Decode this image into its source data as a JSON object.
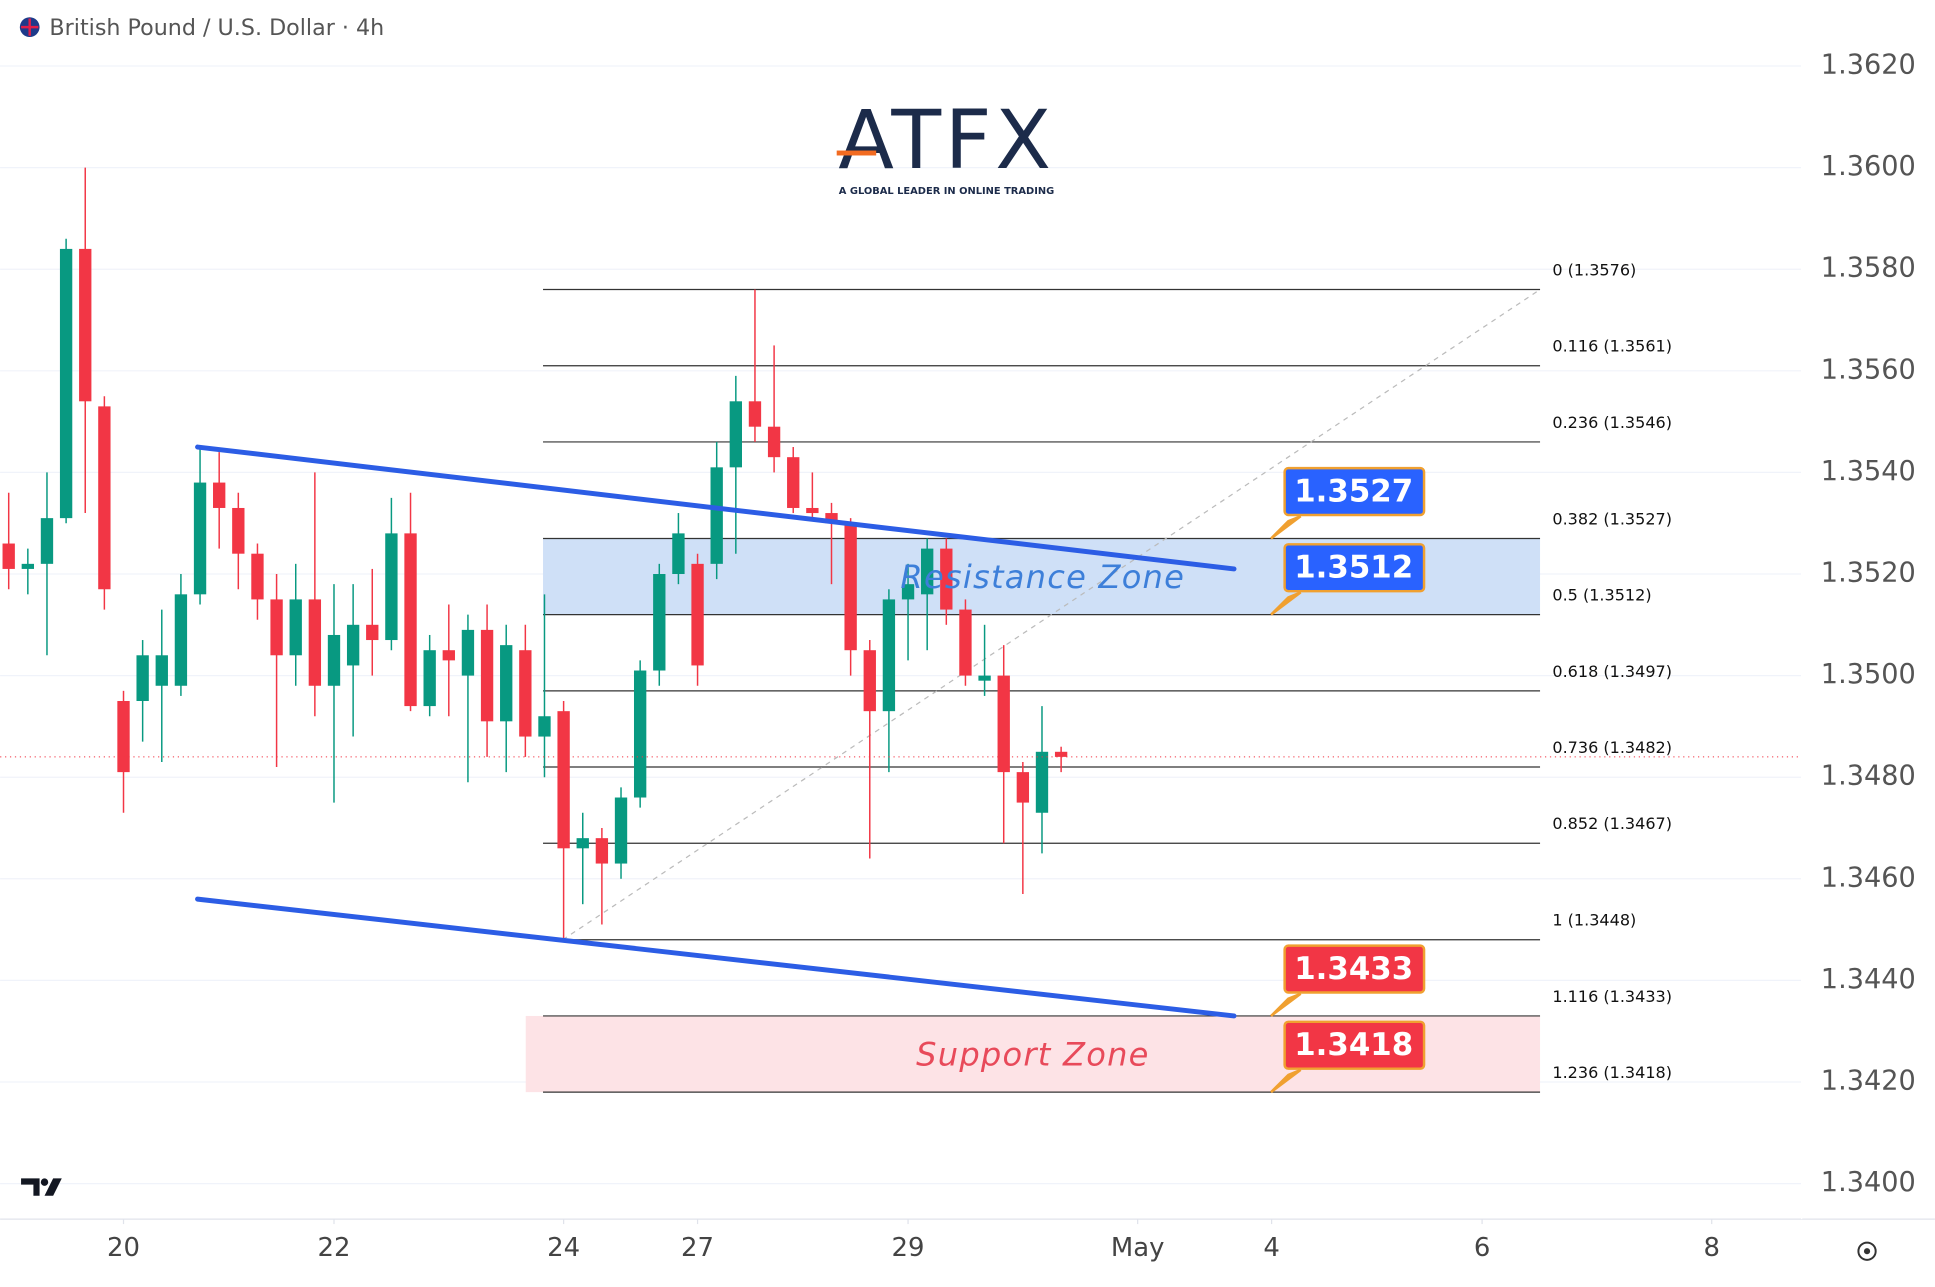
{
  "chart_data": {
    "type": "candlestick",
    "title": "British Pound / U.S. Dollar · 4h",
    "logo": {
      "name": "ATFX",
      "tagline": "A GLOBAL LEADER IN ONLINE TRADING"
    },
    "up_color": "#089981",
    "down_color": "#f23645",
    "x": [
      0,
      1,
      2,
      3,
      4,
      5,
      6,
      7,
      8,
      9,
      10,
      11,
      12,
      13,
      14,
      15,
      16,
      17,
      18,
      19,
      20,
      21,
      22,
      23,
      24,
      25,
      26,
      27,
      28,
      29,
      30,
      31,
      32,
      33,
      34,
      35,
      36,
      37,
      38,
      39,
      40,
      41,
      42,
      43,
      44,
      45,
      46,
      47,
      48,
      49,
      50,
      51,
      52,
      53,
      54,
      55
    ],
    "open": [
      1.3526,
      1.3521,
      1.3522,
      1.3531,
      1.3584,
      1.3553,
      1.3495,
      1.3495,
      1.3498,
      1.3498,
      1.3516,
      1.3538,
      1.3533,
      1.3524,
      1.3515,
      1.3504,
      1.3515,
      1.3498,
      1.3502,
      1.351,
      1.3507,
      1.3528,
      1.3494,
      1.3505,
      1.35,
      1.3509,
      1.3491,
      1.3505,
      1.3488,
      1.3493,
      1.3466,
      1.3468,
      1.3463,
      1.3476,
      1.3501,
      1.352,
      1.3522,
      1.3522,
      1.3541,
      1.3554,
      1.3549,
      1.3543,
      1.3533,
      1.3532,
      1.353,
      1.3505,
      1.3493,
      1.3515,
      1.3516,
      1.3525,
      1.3513,
      1.3499,
      1.35,
      1.3481,
      1.3473,
      1.3485
    ],
    "high": [
      1.3536,
      1.3525,
      1.354,
      1.3586,
      1.36,
      1.3555,
      1.3497,
      1.3507,
      1.3513,
      1.352,
      1.3545,
      1.3544,
      1.3536,
      1.3526,
      1.352,
      1.3522,
      1.354,
      1.3518,
      1.3518,
      1.3521,
      1.3535,
      1.3536,
      1.3508,
      1.3514,
      1.3512,
      1.3514,
      1.351,
      1.351,
      1.3516,
      1.3495,
      1.3473,
      1.347,
      1.3478,
      1.3503,
      1.3522,
      1.3532,
      1.3524,
      1.3546,
      1.3559,
      1.3576,
      1.3565,
      1.3545,
      1.354,
      1.3534,
      1.3531,
      1.3507,
      1.3517,
      1.3522,
      1.3527,
      1.3527,
      1.3515,
      1.351,
      1.3506,
      1.3483,
      1.3494,
      1.3486
    ],
    "low": [
      1.3517,
      1.3516,
      1.3504,
      1.353,
      1.3532,
      1.3513,
      1.3473,
      1.3487,
      1.3483,
      1.3496,
      1.3514,
      1.3525,
      1.3517,
      1.3511,
      1.3482,
      1.3498,
      1.3492,
      1.3475,
      1.3488,
      1.35,
      1.3505,
      1.3493,
      1.3492,
      1.3492,
      1.3479,
      1.3484,
      1.3481,
      1.3484,
      1.348,
      1.3448,
      1.3455,
      1.3451,
      1.346,
      1.3474,
      1.3498,
      1.3518,
      1.3498,
      1.3519,
      1.3524,
      1.3546,
      1.354,
      1.3532,
      1.3531,
      1.3518,
      1.35,
      1.3464,
      1.3481,
      1.3503,
      1.3505,
      1.351,
      1.3498,
      1.3496,
      1.3467,
      1.3457,
      1.3465,
      1.3481
    ],
    "close": [
      1.3521,
      1.3522,
      1.3531,
      1.3584,
      1.3554,
      1.3517,
      1.3481,
      1.3504,
      1.3504,
      1.3516,
      1.3538,
      1.3533,
      1.3524,
      1.3515,
      1.3504,
      1.3515,
      1.3498,
      1.3508,
      1.351,
      1.3507,
      1.3528,
      1.3494,
      1.3505,
      1.3503,
      1.3509,
      1.3491,
      1.3506,
      1.3488,
      1.3492,
      1.3466,
      1.3468,
      1.3463,
      1.3476,
      1.3501,
      1.352,
      1.3528,
      1.3502,
      1.3541,
      1.3554,
      1.3549,
      1.3543,
      1.3533,
      1.3532,
      1.353,
      1.3505,
      1.3493,
      1.3515,
      1.3518,
      1.3525,
      1.3513,
      1.35,
      1.35,
      1.3481,
      1.3475,
      1.3485,
      1.3484
    ],
    "xlim": [
      -0.45,
      93.7
    ],
    "xticks": [
      {
        "value": 6,
        "label": "20"
      },
      {
        "value": 17,
        "label": "22"
      },
      {
        "value": 29,
        "label": "24"
      },
      {
        "value": 36,
        "label": "27"
      },
      {
        "value": 47,
        "label": "29"
      },
      {
        "value": 59,
        "label": "May"
      },
      {
        "value": 66,
        "label": "4"
      },
      {
        "value": 77,
        "label": "6"
      },
      {
        "value": 89,
        "label": "8"
      }
    ],
    "ylim": [
      1.3393,
      1.3633
    ],
    "yticks": [
      {
        "value": 1.34,
        "label": "1.3400"
      },
      {
        "value": 1.342,
        "label": "1.3420"
      },
      {
        "value": 1.344,
        "label": "1.3440"
      },
      {
        "value": 1.346,
        "label": "1.3460"
      },
      {
        "value": 1.348,
        "label": "1.3480"
      },
      {
        "value": 1.35,
        "label": "1.3500"
      },
      {
        "value": 1.352,
        "label": "1.3520"
      },
      {
        "value": 1.354,
        "label": "1.3540"
      },
      {
        "value": 1.356,
        "label": "1.3560"
      },
      {
        "value": 1.358,
        "label": "1.3580"
      },
      {
        "value": 1.36,
        "label": "1.3600"
      },
      {
        "value": 1.362,
        "label": "1.3620"
      }
    ],
    "grid": true,
    "fib_levels": [
      {
        "value": 1.3576,
        "label": "0 (1.3576)"
      },
      {
        "value": 1.3561,
        "label": "0.116 (1.3561)"
      },
      {
        "value": 1.3546,
        "label": "0.236 (1.3546)"
      },
      {
        "value": 1.3527,
        "label": "0.382 (1.3527)"
      },
      {
        "value": 1.3512,
        "label": "0.5 (1.3512)"
      },
      {
        "value": 1.3497,
        "label": "0.618 (1.3497)"
      },
      {
        "value": 1.3482,
        "label": "0.736 (1.3482)"
      },
      {
        "value": 1.3467,
        "label": "0.852 (1.3467)"
      },
      {
        "value": 1.3448,
        "label": "1 (1.3448)"
      },
      {
        "value": 1.3433,
        "label": "1.116 (1.3433)"
      },
      {
        "value": 1.3418,
        "label": "1.236 (1.3418)"
      }
    ],
    "zones": [
      {
        "label": "Resistance Zone",
        "range": [
          1.3512,
          1.3527
        ],
        "color": "#cfe0f7",
        "text_color": "#3d7fd9"
      },
      {
        "label": "Support Zone",
        "range": [
          1.3418,
          1.3433
        ],
        "color": "#fde3e6",
        "text_color": "#e84a5a"
      }
    ],
    "channel_upper": [
      1.3545,
      1.3521
    ],
    "channel_lower": [
      1.3456,
      1.3433
    ],
    "channel_color": "#2c5de5",
    "price_labels": [
      {
        "value": 1.3527,
        "color": "#2962ff"
      },
      {
        "value": 1.3512,
        "color": "#2962ff"
      },
      {
        "value": 1.3433,
        "color": "#f23645"
      },
      {
        "value": 1.3418,
        "color": "#f23645"
      }
    ]
  }
}
